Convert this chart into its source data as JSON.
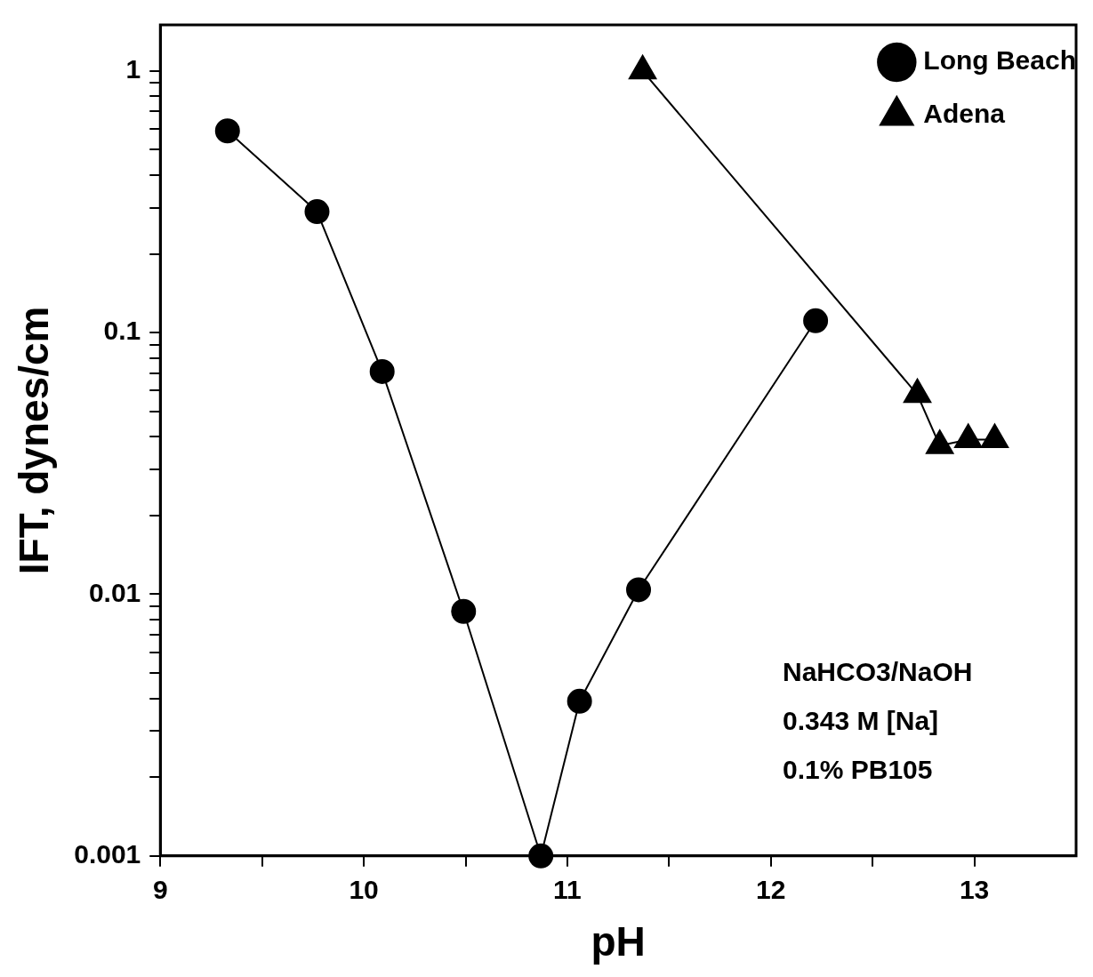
{
  "chart_data": {
    "type": "line",
    "xlabel": "pH",
    "ylabel": "IFT, dynes/cm",
    "log": "y",
    "grid": false,
    "legend": "top right",
    "line_style": "solid",
    "xlim": [
      9,
      13.5
    ],
    "xticks": [
      9,
      {
        "value": 9.5,
        "label": null
      },
      10,
      {
        "value": 10.5,
        "label": null
      },
      11,
      {
        "value": 11.5,
        "label": null
      },
      12,
      {
        "value": 12.5,
        "label": null
      },
      13
    ],
    "ylim": [
      0.001,
      1.5
    ],
    "yticks": [
      0.001,
      {
        "value": 0.002,
        "label": null
      },
      {
        "value": 0.003,
        "label": null
      },
      {
        "value": 0.004,
        "label": null
      },
      {
        "value": 0.005,
        "label": null
      },
      {
        "value": 0.006,
        "label": null
      },
      {
        "value": 0.007,
        "label": null
      },
      {
        "value": 0.008,
        "label": null
      },
      {
        "value": 0.009,
        "label": null
      },
      0.01,
      {
        "value": 0.02,
        "label": null
      },
      {
        "value": 0.03,
        "label": null
      },
      {
        "value": 0.04,
        "label": null
      },
      {
        "value": 0.05,
        "label": null
      },
      {
        "value": 0.06,
        "label": null
      },
      {
        "value": 0.07,
        "label": null
      },
      {
        "value": 0.08,
        "label": null
      },
      {
        "value": 0.09,
        "label": null
      },
      0.1,
      {
        "value": 0.2,
        "label": null
      },
      {
        "value": 0.3,
        "label": null
      },
      {
        "value": 0.4,
        "label": null
      },
      {
        "value": 0.5,
        "label": null
      },
      {
        "value": 0.6,
        "label": null
      },
      {
        "value": 0.7,
        "label": null
      },
      {
        "value": 0.8,
        "label": null
      },
      {
        "value": 0.9,
        "label": null
      },
      1
    ],
    "series": [
      {
        "name": "Long Beach",
        "color": "#000000",
        "marker": "circle",
        "x": [
          9.33,
          9.77,
          10.09,
          10.49,
          10.87,
          11.06,
          11.35,
          12.22
        ],
        "values": [
          0.59,
          0.29,
          0.071,
          0.0086,
          0.001,
          0.0039,
          0.0104,
          0.111
        ]
      },
      {
        "name": "Adena",
        "color": "#000000",
        "marker": "triangle",
        "x": [
          11.37,
          12.72,
          12.83,
          12.97,
          13.1
        ],
        "values": [
          1.0,
          0.058,
          0.037,
          0.039,
          0.039
        ]
      }
    ],
    "annotations": [
      "NaHCO3/NaOH",
      "0.343 M [Na]",
      "0.1% PB105"
    ]
  }
}
